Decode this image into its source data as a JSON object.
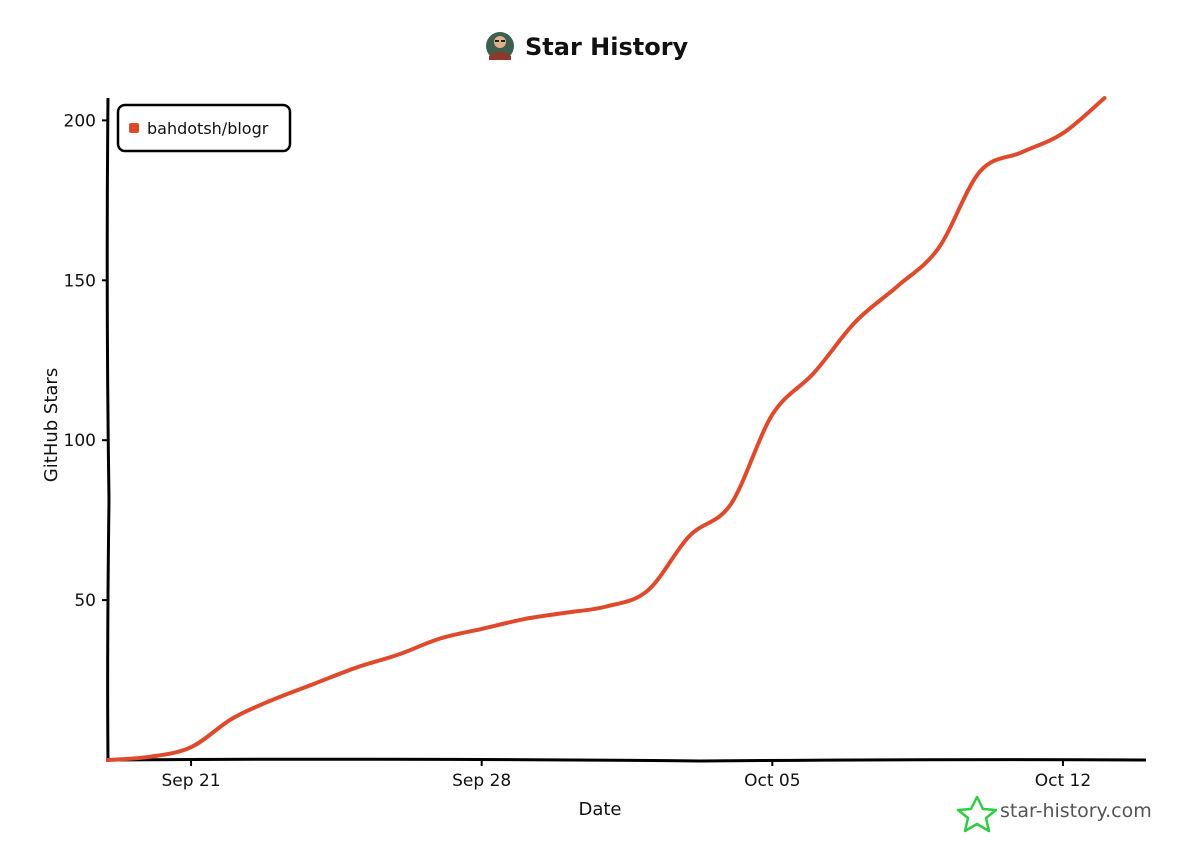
{
  "chart_data": {
    "type": "line",
    "title": "Star History",
    "xlabel": "Date",
    "ylabel": "GitHub Stars",
    "x_type": "date",
    "xlim": [
      "2020-09-19",
      "2020-10-14"
    ],
    "ylim": [
      0,
      207
    ],
    "xticks": [
      {
        "label": "Sep 21",
        "date": "2020-09-21"
      },
      {
        "label": "Sep 28",
        "date": "2020-09-28"
      },
      {
        "label": "Oct 05",
        "date": "2020-10-05"
      },
      {
        "label": "Oct 12",
        "date": "2020-10-12"
      }
    ],
    "yticks": [
      50,
      100,
      150,
      200
    ],
    "grid": false,
    "legend": {
      "placement": "top-left"
    },
    "series": [
      {
        "name": "bahdotsh/blogr",
        "color": "#dd4b2c",
        "points": [
          {
            "x": "2020-09-19",
            "y": 0
          },
          {
            "x": "2020-09-20",
            "y": 1
          },
          {
            "x": "2020-09-21",
            "y": 4
          },
          {
            "x": "2020-09-22",
            "y": 13
          },
          {
            "x": "2020-09-23",
            "y": 19
          },
          {
            "x": "2020-09-24",
            "y": 24
          },
          {
            "x": "2020-09-25",
            "y": 29
          },
          {
            "x": "2020-09-26",
            "y": 33
          },
          {
            "x": "2020-09-27",
            "y": 38
          },
          {
            "x": "2020-09-28",
            "y": 41
          },
          {
            "x": "2020-09-29",
            "y": 44
          },
          {
            "x": "2020-09-30",
            "y": 46
          },
          {
            "x": "2020-10-01",
            "y": 48
          },
          {
            "x": "2020-10-02",
            "y": 53
          },
          {
            "x": "2020-10-03",
            "y": 70
          },
          {
            "x": "2020-10-04",
            "y": 80
          },
          {
            "x": "2020-10-05",
            "y": 108
          },
          {
            "x": "2020-10-06",
            "y": 121
          },
          {
            "x": "2020-10-07",
            "y": 137
          },
          {
            "x": "2020-10-08",
            "y": 148
          },
          {
            "x": "2020-10-09",
            "y": 160
          },
          {
            "x": "2020-10-10",
            "y": 184
          },
          {
            "x": "2020-10-11",
            "y": 190
          },
          {
            "x": "2020-10-12",
            "y": 196
          },
          {
            "x": "2020-10-13",
            "y": 207
          }
        ]
      }
    ]
  },
  "watermark": {
    "text": "star-history.com",
    "icon": "star-icon",
    "color": "#2ecc40"
  },
  "title_avatar": {
    "icon": "avatar-icon"
  }
}
